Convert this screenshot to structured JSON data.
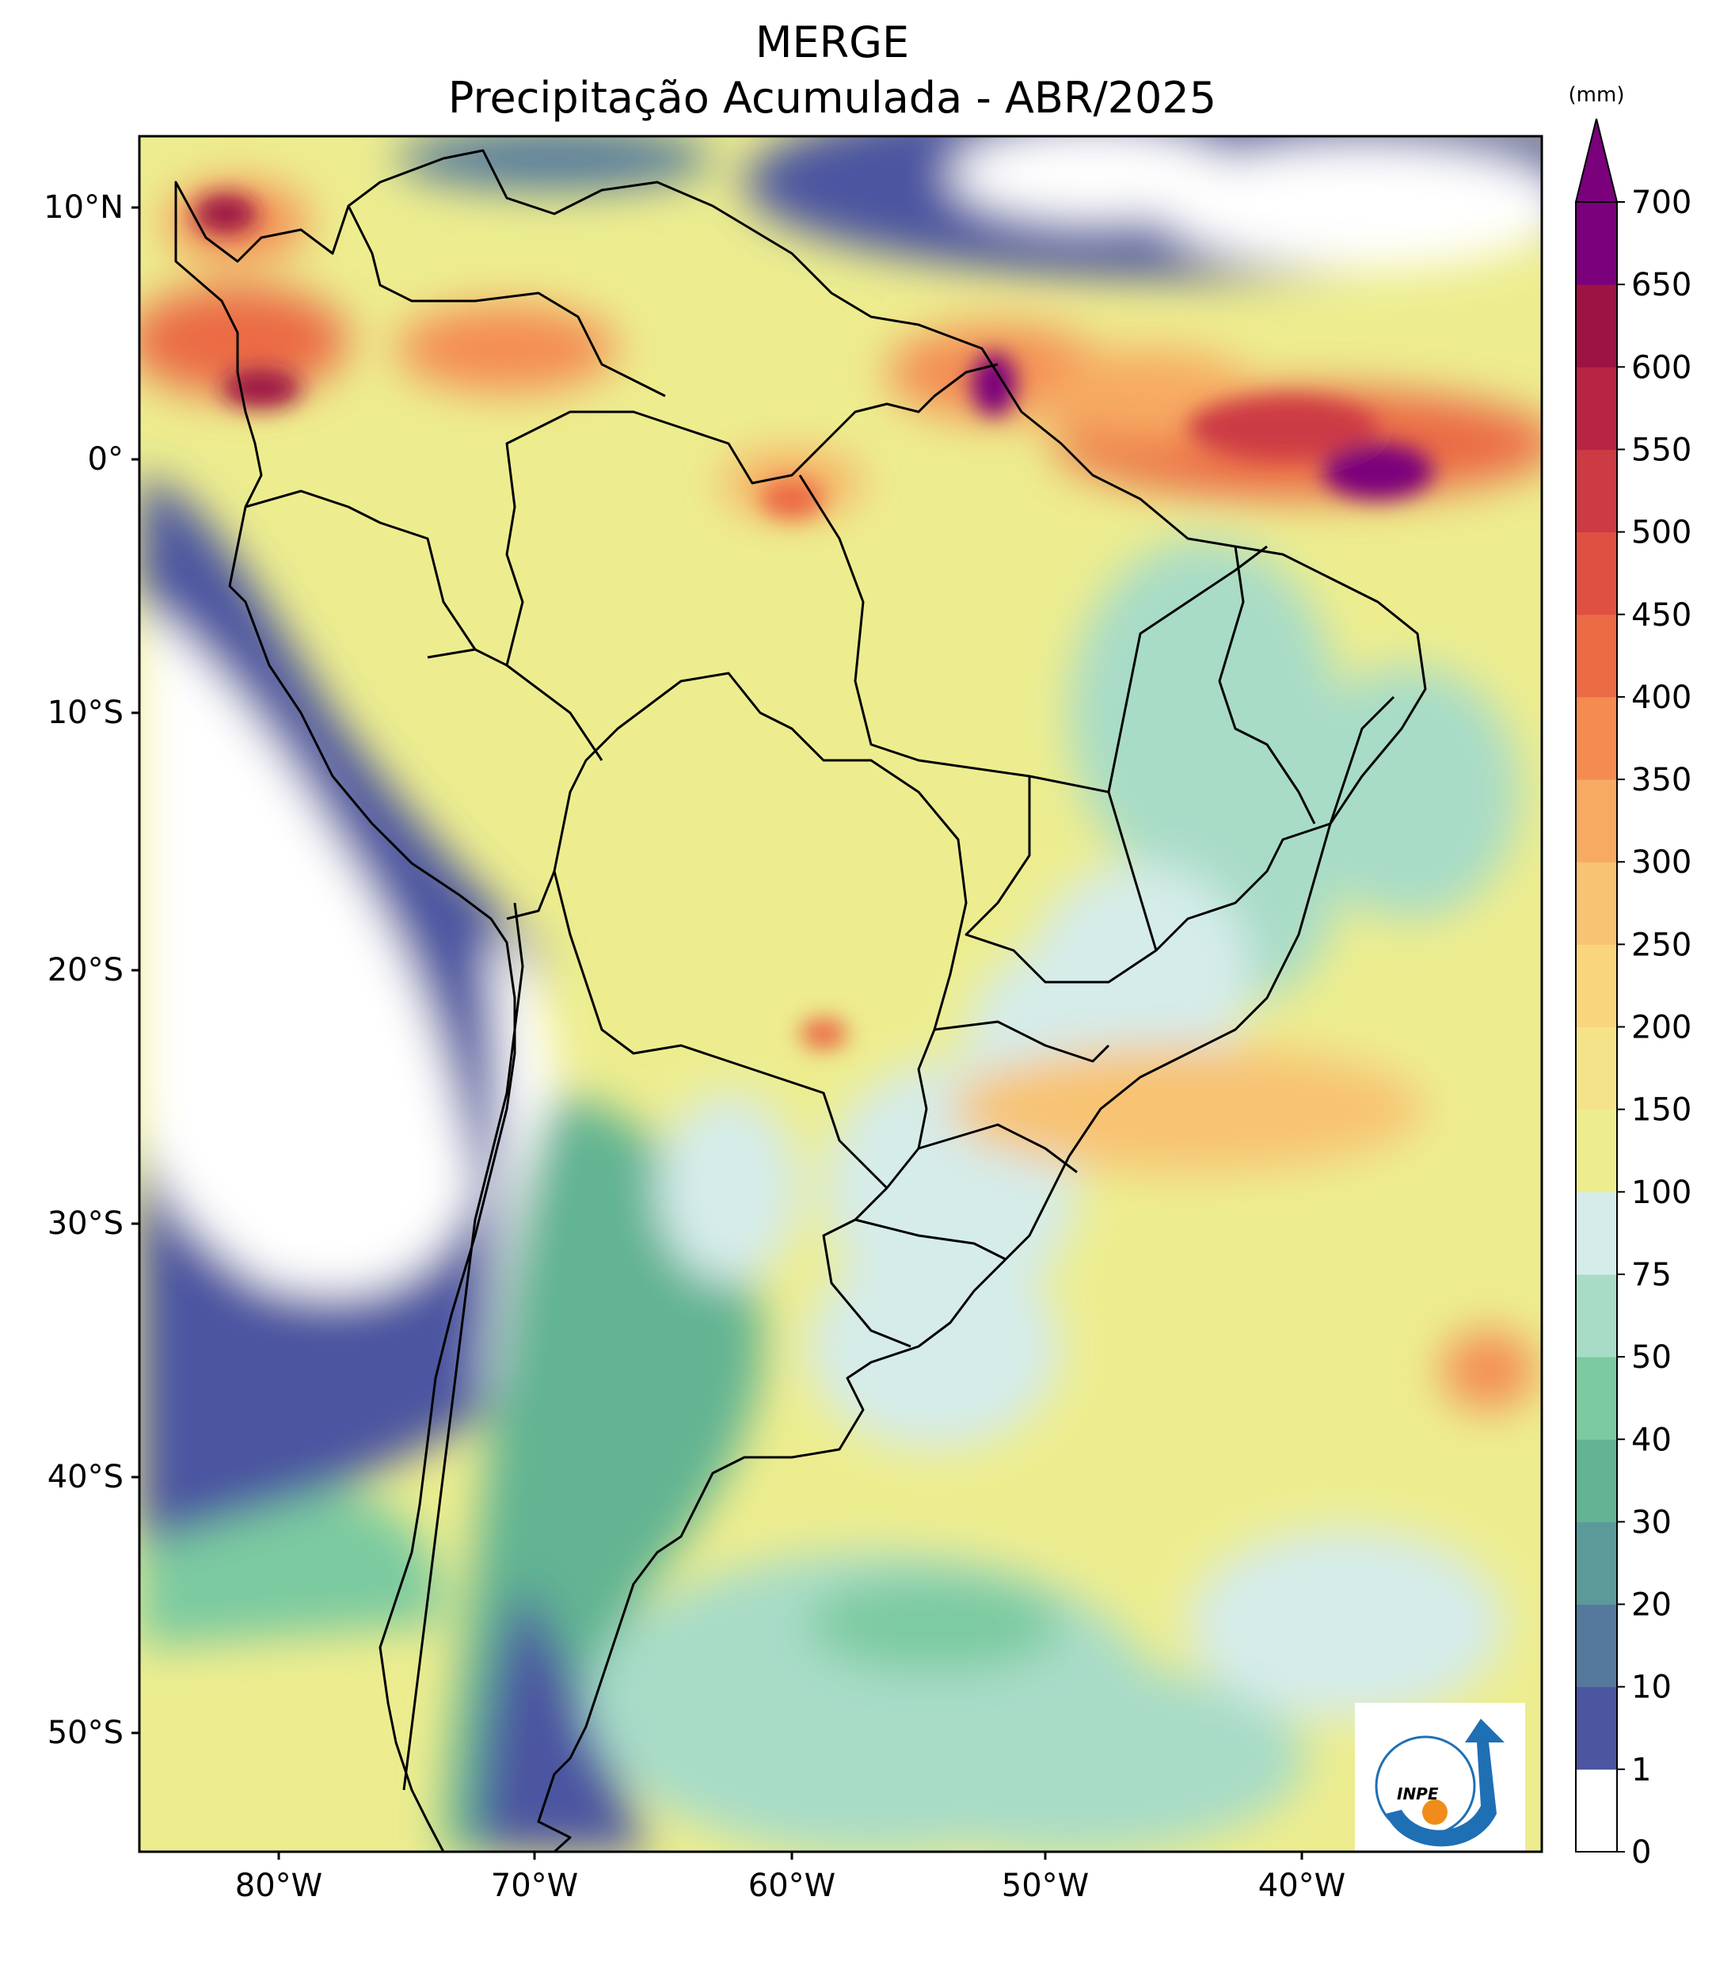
{
  "title_line1": "MERGE",
  "title_line2": "Precipitação Acumulada - ABR/2025",
  "colorbar": {
    "unit": "(mm)",
    "levels": [
      "0",
      "1",
      "10",
      "20",
      "30",
      "40",
      "50",
      "75",
      "100",
      "150",
      "200",
      "250",
      "300",
      "350",
      "400",
      "450",
      "500",
      "550",
      "600",
      "650",
      "700"
    ],
    "colors": [
      "#ffffff",
      "#4b55a0",
      "#55799d",
      "#5c9a9a",
      "#62b493",
      "#7ccaa0",
      "#a8dcc7",
      "#d5ecea",
      "#eded8f",
      "#f5e38a",
      "#f9d67e",
      "#f8c373",
      "#f7aa62",
      "#f48c52",
      "#eb6b45",
      "#df5043",
      "#cc3a44",
      "#b82444",
      "#9d1444",
      "#7a007c"
    ],
    "extend_top_color": "#7a007c"
  },
  "map": {
    "lat_labels": [
      "10°N",
      "0°",
      "10°S",
      "20°S",
      "30°S",
      "40°S",
      "50°S"
    ],
    "lon_labels": [
      "80°W",
      "70°W",
      "60°W",
      "50°W",
      "40°W"
    ]
  },
  "logo": {
    "text": "INPE",
    "colors": {
      "arrow": "#1f6fb5",
      "dot": "#f08c1c"
    }
  }
}
